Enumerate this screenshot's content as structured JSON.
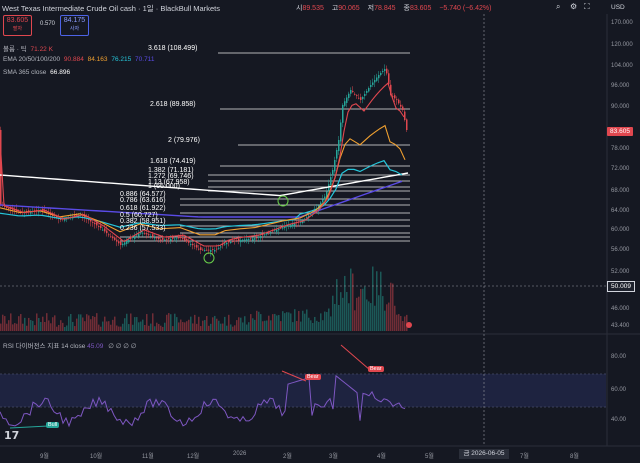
{
  "header": {
    "symbol_title": "West Texas Intermediate Crude Oil cash · 1일 · BlackBull Markets",
    "ohlc": [
      {
        "label": "시",
        "value": "89.535"
      },
      {
        "label": "고",
        "value": "90.065"
      },
      {
        "label": "저",
        "value": "78.845"
      },
      {
        "label": "종",
        "value": "83.605"
      },
      {
        "label": "",
        "value": "−5.740 (−6.42%)"
      }
    ],
    "currency": "USD",
    "sell_price": "83.605",
    "sell_label": "팔자",
    "buy_price": "84.175",
    "buy_label": "사자",
    "spread": "0.570"
  },
  "indicators": {
    "volume": {
      "name": "볼륨 · 틱",
      "value": "71.22 K"
    },
    "ema": {
      "name": "EMA 20/50/100/200",
      "values": [
        "90.884",
        "84.163",
        "76.215",
        "70.711"
      ]
    },
    "sma": {
      "name": "SMA 365 close",
      "value": "66.896"
    },
    "rsi": {
      "name": "RSI 다이버전스 지표 14 close",
      "value": "45.09",
      "extras": [
        "∅",
        "∅",
        "∅",
        "∅"
      ]
    }
  },
  "fib_levels": [
    {
      "label": "3.618 (108.499)"
    },
    {
      "label": "2.618 (89.858)"
    },
    {
      "label": "2 (79.976)"
    },
    {
      "label": "1.618 (74.419)"
    },
    {
      "label": "1.382 (71.181)"
    },
    {
      "label": "1.272 (69.746)"
    },
    {
      "label": "1.13 (67.958)"
    },
    {
      "label": "1 (66.000)"
    },
    {
      "label": "0.886 (64.577)"
    },
    {
      "label": "0.786 (63.616)"
    },
    {
      "label": "0.618 (61.922)"
    },
    {
      "label": "0.5 (60.727)"
    },
    {
      "label": "0.382 (58.951)"
    },
    {
      "label": "0.236 (57.533)"
    }
  ],
  "price_axis": [
    "170.000",
    "120.000",
    "104.000",
    "96.000",
    "90.000",
    "83.605",
    "78.000",
    "72.000",
    "68.000",
    "64.000",
    "60.000",
    "56.000",
    "52.000",
    "50.009",
    "46.000",
    "43.400"
  ],
  "rsi_axis": [
    "80.00",
    "60.00",
    "40.00"
  ],
  "time_axis": [
    "9월",
    "10월",
    "11월",
    "12월",
    "2026",
    "2월",
    "3월",
    "4월",
    "5월",
    "7월",
    "8월"
  ],
  "crosshair_date": "금 2026-06-05",
  "last_price": "83.605",
  "crosshair_price": "50.009",
  "signals": {
    "bull": "Bull",
    "bear1": "Bear",
    "bear2": "Bear"
  },
  "colors": {
    "up": "#26a69a",
    "down": "#e0474f",
    "ema20": "#e0474f",
    "ema50": "#f0a030",
    "ema100": "#26c6da",
    "ema200": "#5a4be6",
    "sma365": "#ffffff",
    "rsi": "#7e57c2"
  },
  "icons": [
    "search-icon",
    "gear-icon",
    "expand-icon",
    "tradingview-logo"
  ]
}
